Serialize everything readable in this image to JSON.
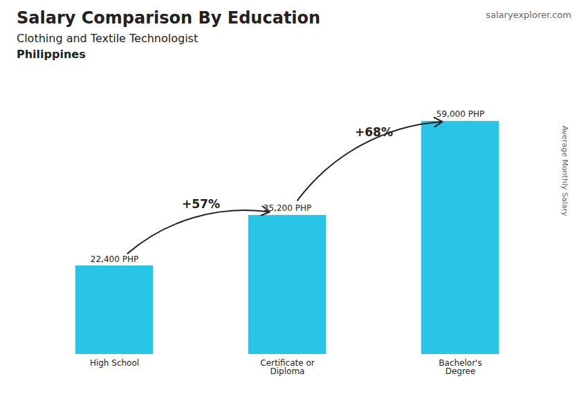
{
  "chart_data": {
    "type": "bar",
    "title": "Salary Comparison By Education",
    "subtitle": "Clothing and Textile Technologist",
    "country": "Philippines",
    "brand": "salaryexplorer.com",
    "ylabel": "Average Monthly Salary",
    "categories": [
      "High School",
      "Certificate or\nDiploma",
      "Bachelor's\nDegree"
    ],
    "values": [
      22400,
      35200,
      59000
    ],
    "value_labels": [
      "22,400 PHP",
      "35,200 PHP",
      "59,000 PHP"
    ],
    "data_labels": true,
    "color": "#29c5e6",
    "ylim": [
      0,
      70000
    ],
    "tick_labels": "x",
    "grid": false,
    "annotations": [
      {
        "text": "+57%",
        "from": "High School",
        "to": "Certificate or\nDiploma"
      },
      {
        "text": "+68%",
        "from": "Certificate or\nDiploma",
        "to": "Bachelor's\nDegree"
      }
    ]
  }
}
